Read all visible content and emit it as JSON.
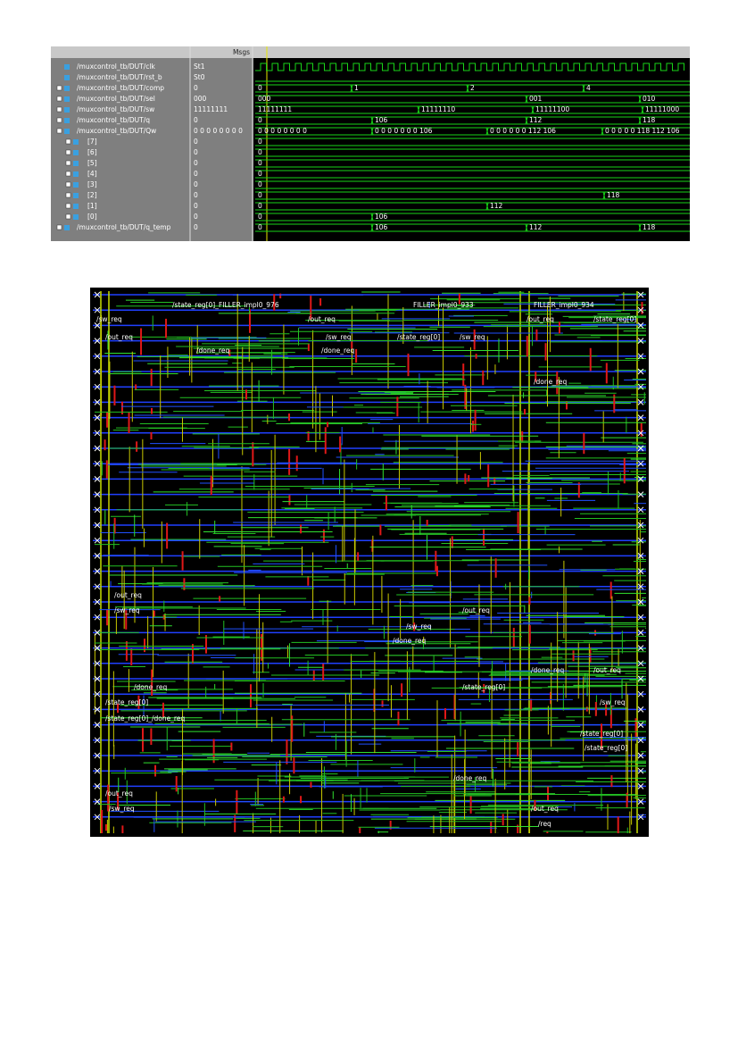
{
  "waveform": {
    "header": "Msgs",
    "signals": [
      {
        "name": "/muxcontrol_tb/DUT/clk",
        "value": "St1",
        "wave": []
      },
      {
        "name": "/muxcontrol_tb/DUT/rst_b",
        "value": "St0",
        "wave": []
      },
      {
        "name": "/muxcontrol_tb/DUT/comp",
        "value": "0",
        "wave": [
          "0",
          "1",
          "2",
          "4"
        ]
      },
      {
        "name": "/muxcontrol_tb/DUT/sel",
        "value": "000",
        "wave": [
          "000",
          "001",
          "010"
        ]
      },
      {
        "name": "/muxcontrol_tb/DUT/sw",
        "value": "11111111",
        "wave": [
          "11111111",
          "11111110",
          "11111100",
          "11111000"
        ]
      },
      {
        "name": "/muxcontrol_tb/DUT/q",
        "value": "0",
        "wave": [
          "0",
          "106",
          "112",
          "118"
        ]
      },
      {
        "name": "/muxcontrol_tb/DUT/Qw",
        "value": "0 0 0 0 0 0 0 0",
        "wave": [
          "0 0 0 0 0 0 0 0",
          "0 0 0 0 0 0 0 106",
          "0 0 0 0 0 0 112 106",
          "0 0 0 0 0 118 112 106"
        ]
      },
      {
        "name": "[7]",
        "value": "0",
        "wave": [
          "0"
        ]
      },
      {
        "name": "[6]",
        "value": "0",
        "wave": [
          "0"
        ]
      },
      {
        "name": "[5]",
        "value": "0",
        "wave": [
          "0"
        ]
      },
      {
        "name": "[4]",
        "value": "0",
        "wave": [
          "0"
        ]
      },
      {
        "name": "[3]",
        "value": "0",
        "wave": [
          "0"
        ]
      },
      {
        "name": "[2]",
        "value": "0",
        "wave": [
          "0",
          "118"
        ]
      },
      {
        "name": "[1]",
        "value": "0",
        "wave": [
          "0",
          "112"
        ]
      },
      {
        "name": "[0]",
        "value": "0",
        "wave": [
          "0",
          "106"
        ]
      },
      {
        "name": "/muxcontrol_tb/DUT/q_temp",
        "value": "0",
        "wave": [
          "0",
          "106",
          "112",
          "118"
        ]
      }
    ]
  },
  "layout": {
    "labels": [
      "/state_reg[0]_FILLER_impl0_976",
      "FILLER_impl0_933",
      "FILLER_impl0_934",
      "/sw_req",
      "/out_req",
      "/out_req",
      "/state_reg[0]",
      "/out_req",
      "/sw_req",
      "/state_reg[0]",
      "/sw_req",
      "/done_req",
      "/done_req",
      "/done_req",
      "/out_req",
      "/sw_req",
      "/out_req",
      "/sw_req",
      "/done_req",
      "/done_req",
      "/out_req",
      "/done_req",
      "/state_reg[0]",
      "/state_reg[0]",
      "/sw_req",
      "/state_reg[0]_/done_req",
      "/state_reg[0]",
      "/state_reg[0]",
      "/done_req",
      "/out_req",
      "/sw_req",
      "/out_req",
      "/req"
    ]
  }
}
